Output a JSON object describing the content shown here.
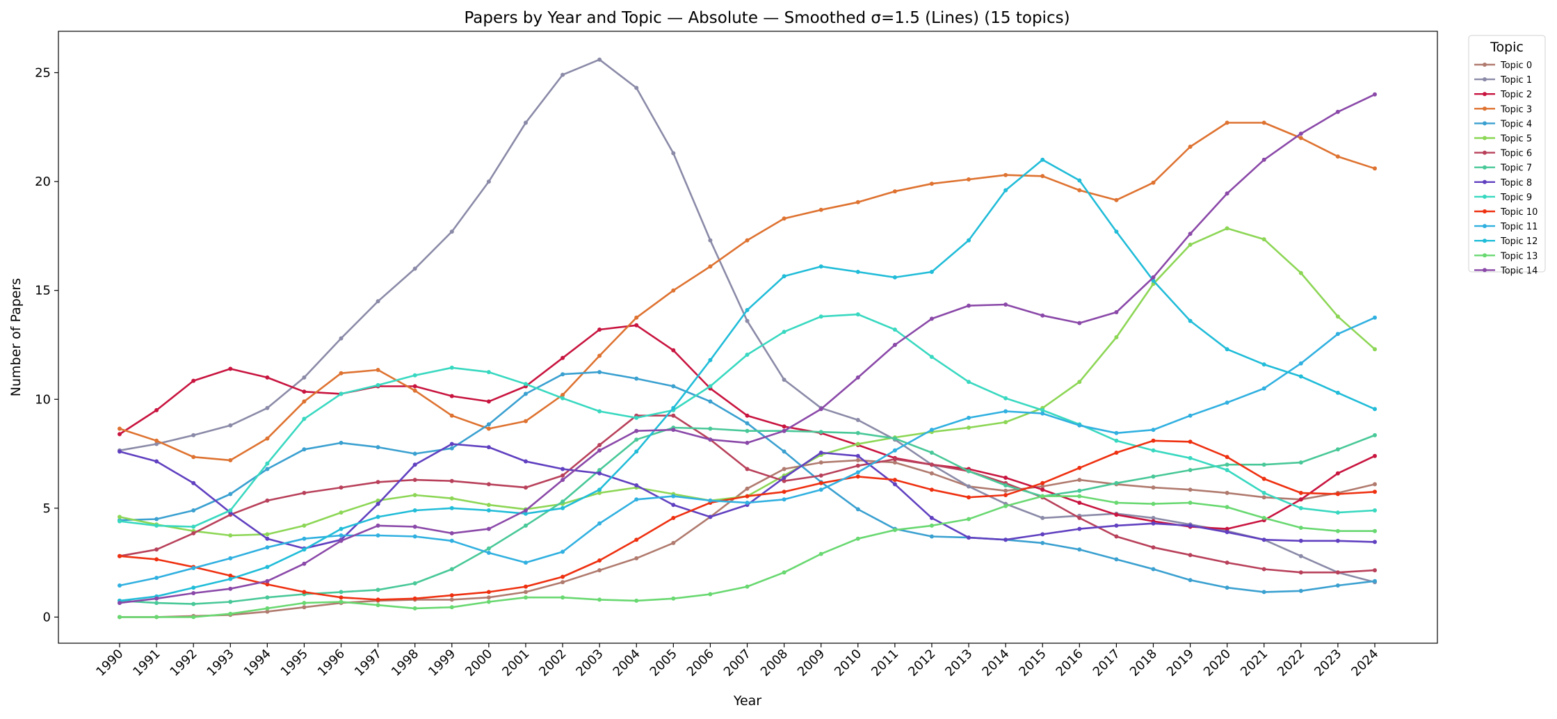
{
  "chart_data": {
    "type": "line",
    "title": "Papers by Year and Topic — Absolute — Smoothed σ=1.5 (Lines) (15 topics)",
    "xlabel": "Year",
    "ylabel": "Number of Papers",
    "ylim": [
      -1.2,
      26.9
    ],
    "yticks": [
      0,
      5,
      10,
      15,
      20,
      25
    ],
    "grid": false,
    "legend_title": "Topic",
    "legend_position": "outside-top-right",
    "categories": [
      "1990",
      "1991",
      "1992",
      "1993",
      "1994",
      "1995",
      "1996",
      "1997",
      "1998",
      "1999",
      "2000",
      "2001",
      "2002",
      "2003",
      "2004",
      "2005",
      "2006",
      "2007",
      "2008",
      "2009",
      "2010",
      "2011",
      "2012",
      "2013",
      "2014",
      "2015",
      "2016",
      "2017",
      "2018",
      "2019",
      "2020",
      "2021",
      "2022",
      "2023",
      "2024"
    ],
    "series": [
      {
        "name": "Topic 0",
        "color": "#b07a6e",
        "values": [
          0.0,
          0.0,
          0.05,
          0.1,
          0.25,
          0.45,
          0.65,
          0.75,
          0.8,
          0.8,
          0.9,
          1.15,
          1.6,
          2.15,
          2.7,
          3.4,
          4.6,
          5.9,
          6.8,
          7.1,
          7.2,
          7.1,
          6.6,
          6.0,
          5.8,
          6.0,
          6.3,
          6.1,
          5.95,
          5.85,
          5.7,
          5.5,
          5.4,
          5.7,
          6.1
        ]
      },
      {
        "name": "Topic 1",
        "color": "#8a8aa8",
        "values": [
          7.65,
          7.95,
          8.35,
          8.8,
          9.6,
          11.0,
          12.8,
          14.5,
          16.0,
          17.7,
          20.0,
          22.7,
          24.9,
          25.6,
          24.3,
          21.3,
          17.3,
          13.6,
          10.9,
          9.6,
          9.05,
          8.15,
          7.0,
          6.0,
          5.2,
          4.55,
          4.65,
          4.75,
          4.55,
          4.25,
          3.95,
          3.55,
          2.8,
          2.05,
          1.6
        ]
      },
      {
        "name": "Topic 2",
        "color": "#c8143f",
        "values": [
          8.4,
          9.5,
          10.85,
          11.4,
          11.0,
          10.35,
          10.25,
          10.6,
          10.6,
          10.15,
          9.9,
          10.6,
          11.9,
          13.2,
          13.4,
          12.25,
          10.5,
          9.25,
          8.75,
          8.45,
          7.9,
          7.3,
          7.0,
          6.8,
          6.4,
          5.85,
          5.25,
          4.7,
          4.4,
          4.15,
          4.05,
          4.45,
          5.4,
          6.6,
          7.4
        ]
      },
      {
        "name": "Topic 3",
        "color": "#de7230",
        "values": [
          8.65,
          8.1,
          7.35,
          7.2,
          8.2,
          9.9,
          11.2,
          11.35,
          10.4,
          9.25,
          8.65,
          9.0,
          10.2,
          12.0,
          13.75,
          15.0,
          16.1,
          17.3,
          18.3,
          18.7,
          19.05,
          19.55,
          19.9,
          20.1,
          20.3,
          20.25,
          19.6,
          19.15,
          19.95,
          21.6,
          22.7,
          22.7,
          22.0,
          21.15,
          20.6
        ]
      },
      {
        "name": "Topic 4",
        "color": "#3aa0d0",
        "values": [
          4.45,
          4.5,
          4.9,
          5.65,
          6.8,
          7.7,
          8.0,
          7.8,
          7.5,
          7.75,
          8.85,
          10.25,
          11.15,
          11.25,
          10.95,
          10.6,
          9.9,
          8.9,
          7.6,
          6.2,
          4.95,
          4.05,
          3.7,
          3.65,
          3.55,
          3.4,
          3.1,
          2.65,
          2.2,
          1.7,
          1.35,
          1.15,
          1.2,
          1.45,
          1.65
        ]
      },
      {
        "name": "Topic 5",
        "color": "#8cd655",
        "values": [
          4.6,
          4.25,
          3.95,
          3.75,
          3.8,
          4.2,
          4.8,
          5.35,
          5.6,
          5.45,
          5.15,
          4.95,
          5.2,
          5.7,
          5.95,
          5.65,
          5.35,
          5.55,
          6.5,
          7.45,
          7.95,
          8.25,
          8.5,
          8.7,
          8.95,
          9.6,
          10.8,
          12.85,
          15.3,
          17.1,
          17.85,
          17.35,
          15.8,
          13.8,
          12.3
        ]
      },
      {
        "name": "Topic 6",
        "color": "#b8405a",
        "values": [
          2.8,
          3.1,
          3.85,
          4.7,
          5.35,
          5.7,
          5.95,
          6.2,
          6.3,
          6.25,
          6.1,
          5.95,
          6.5,
          7.9,
          9.25,
          9.25,
          8.15,
          6.8,
          6.25,
          6.5,
          6.95,
          7.25,
          7.0,
          6.7,
          6.15,
          5.5,
          4.55,
          3.7,
          3.2,
          2.85,
          2.5,
          2.2,
          2.05,
          2.05,
          2.15
        ]
      },
      {
        "name": "Topic 7",
        "color": "#48c898",
        "values": [
          0.75,
          0.65,
          0.6,
          0.7,
          0.9,
          1.05,
          1.15,
          1.25,
          1.55,
          2.2,
          3.15,
          4.2,
          5.3,
          6.75,
          8.15,
          8.7,
          8.65,
          8.55,
          8.55,
          8.5,
          8.45,
          8.2,
          7.55,
          6.7,
          6.05,
          5.55,
          5.8,
          6.15,
          6.45,
          6.75,
          7.0,
          7.0,
          7.1,
          7.7,
          8.35
        ]
      },
      {
        "name": "Topic 8",
        "color": "#6040c0",
        "values": [
          7.6,
          7.15,
          6.15,
          4.8,
          3.6,
          3.15,
          3.55,
          5.2,
          7.0,
          7.95,
          7.8,
          7.15,
          6.8,
          6.6,
          6.05,
          5.15,
          4.6,
          5.15,
          6.4,
          7.55,
          7.4,
          6.1,
          4.55,
          3.65,
          3.55,
          3.8,
          4.05,
          4.2,
          4.3,
          4.2,
          3.9,
          3.55,
          3.5,
          3.5,
          3.45
        ]
      },
      {
        "name": "Topic 9",
        "color": "#38d8c0",
        "values": [
          4.4,
          4.2,
          4.15,
          4.9,
          7.05,
          9.1,
          10.25,
          10.65,
          11.1,
          11.45,
          11.25,
          10.7,
          10.05,
          9.45,
          9.15,
          9.5,
          10.6,
          12.05,
          13.1,
          13.8,
          13.9,
          13.2,
          11.95,
          10.8,
          10.05,
          9.5,
          8.85,
          8.1,
          7.65,
          7.3,
          6.75,
          5.7,
          5.0,
          4.8,
          4.9
        ]
      },
      {
        "name": "Topic 10",
        "color": "#ee3010",
        "values": [
          2.8,
          2.65,
          2.3,
          1.9,
          1.5,
          1.15,
          0.9,
          0.8,
          0.85,
          1.0,
          1.15,
          1.4,
          1.85,
          2.6,
          3.55,
          4.55,
          5.25,
          5.55,
          5.75,
          6.15,
          6.45,
          6.3,
          5.85,
          5.5,
          5.6,
          6.15,
          6.85,
          7.55,
          8.1,
          8.05,
          7.35,
          6.35,
          5.7,
          5.65,
          5.75
        ]
      },
      {
        "name": "Topic 11",
        "color": "#30b0e0",
        "values": [
          1.45,
          1.8,
          2.25,
          2.7,
          3.2,
          3.6,
          3.75,
          3.75,
          3.7,
          3.5,
          2.95,
          2.5,
          3.0,
          4.3,
          5.4,
          5.55,
          5.35,
          5.25,
          5.4,
          5.85,
          6.65,
          7.65,
          8.6,
          9.15,
          9.45,
          9.35,
          8.8,
          8.45,
          8.6,
          9.25,
          9.85,
          10.5,
          11.65,
          13.0,
          13.75
        ]
      },
      {
        "name": "Topic 12",
        "color": "#20bcd8",
        "values": [
          0.75,
          0.95,
          1.35,
          1.75,
          2.3,
          3.1,
          4.05,
          4.6,
          4.9,
          5.0,
          4.9,
          4.75,
          5.0,
          5.85,
          7.6,
          9.6,
          11.8,
          14.1,
          15.65,
          16.1,
          15.85,
          15.6,
          15.85,
          17.3,
          19.6,
          21.0,
          20.05,
          17.7,
          15.45,
          13.6,
          12.3,
          11.6,
          11.05,
          10.3,
          9.55
        ]
      },
      {
        "name": "Topic 13",
        "color": "#68d870",
        "values": [
          0.0,
          0.0,
          0.0,
          0.15,
          0.4,
          0.65,
          0.7,
          0.55,
          0.4,
          0.45,
          0.7,
          0.9,
          0.9,
          0.8,
          0.75,
          0.85,
          1.05,
          1.4,
          2.05,
          2.9,
          3.6,
          4.0,
          4.2,
          4.5,
          5.1,
          5.55,
          5.55,
          5.25,
          5.2,
          5.25,
          5.05,
          4.55,
          4.1,
          3.95,
          3.95
        ]
      },
      {
        "name": "Topic 14",
        "color": "#8a48a8",
        "values": [
          0.65,
          0.85,
          1.1,
          1.3,
          1.65,
          2.45,
          3.5,
          4.2,
          4.15,
          3.85,
          4.05,
          4.9,
          6.3,
          7.65,
          8.55,
          8.6,
          8.15,
          8.0,
          8.55,
          9.55,
          11.0,
          12.5,
          13.7,
          14.3,
          14.35,
          13.85,
          13.5,
          14.0,
          15.6,
          17.6,
          19.45,
          21.0,
          22.2,
          23.2,
          24.0
        ]
      }
    ]
  }
}
